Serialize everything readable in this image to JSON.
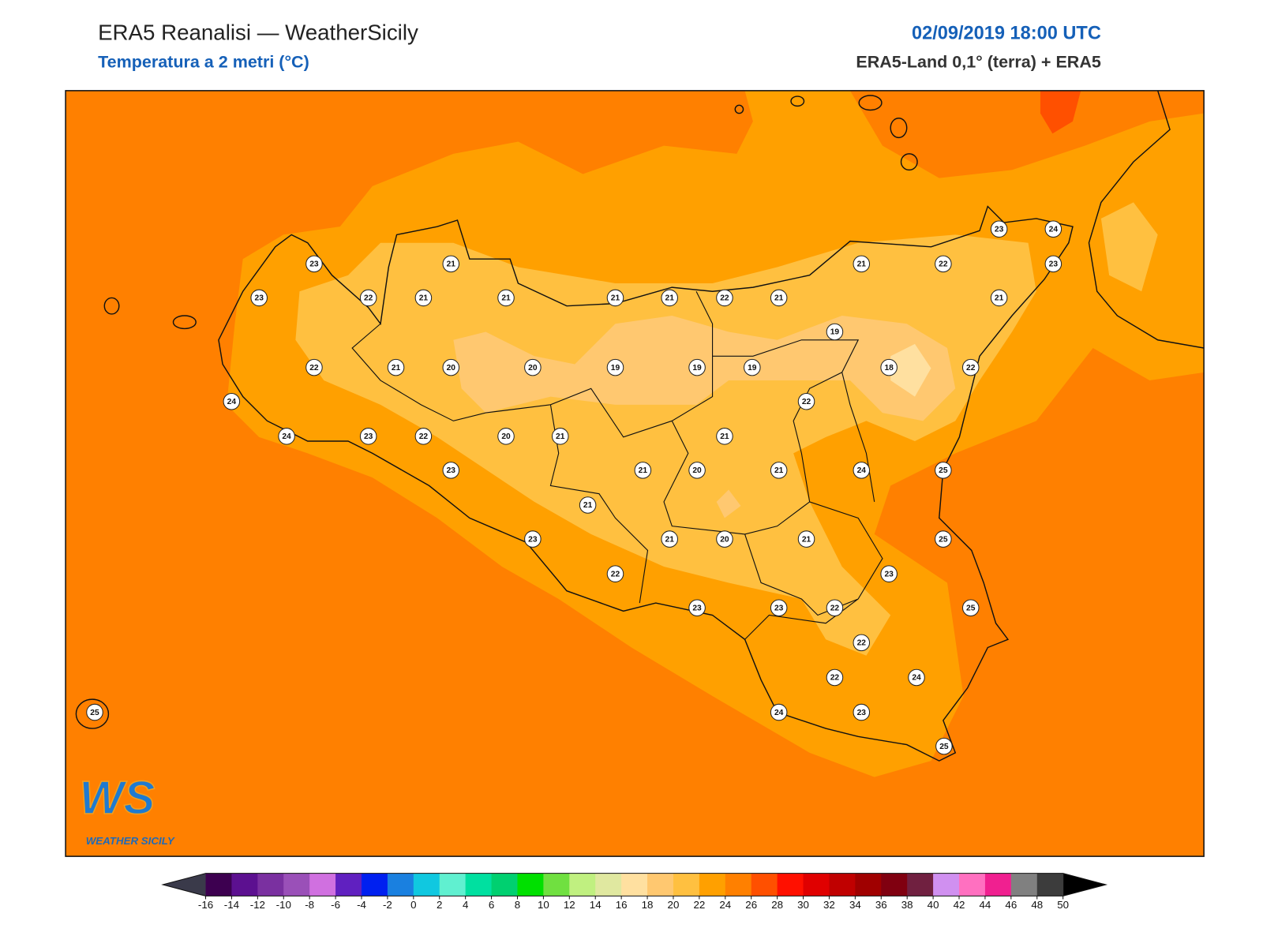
{
  "header": {
    "title": "ERA5 Reanalisi — WeatherSicily",
    "subtitle": "Temperatura a 2 metri (°C)",
    "datetime": "02/09/2019 18:00 UTC",
    "source": "ERA5-Land 0,1° (terra) + ERA5"
  },
  "stations": [
    23,
    21,
    23,
    22,
    21,
    21,
    21,
    21,
    22,
    21,
    21,
    22,
    23,
    24,
    23,
    21,
    19,
    22,
    21,
    20,
    20,
    19,
    19,
    19,
    18,
    22,
    24,
    22,
    24,
    23,
    22,
    20,
    21,
    21,
    23,
    21,
    20,
    21,
    24,
    25,
    21,
    23,
    21,
    20,
    21,
    25,
    22,
    23,
    23,
    23,
    22,
    25,
    22,
    22,
    24,
    24,
    23,
    25,
    25
  ],
  "logo": {
    "mark": "WS",
    "name": "WEATHER SICILY"
  },
  "colorbar": {
    "ticks": [
      -16,
      -14,
      -12,
      -10,
      -8,
      -6,
      -4,
      -2,
      0,
      2,
      4,
      6,
      8,
      10,
      12,
      14,
      16,
      18,
      20,
      22,
      24,
      26,
      28,
      30,
      32,
      34,
      36,
      38,
      40,
      42,
      44,
      46,
      48,
      50
    ],
    "colors": [
      "#3d0050",
      "#5c1090",
      "#7a30a0",
      "#9a50b8",
      "#d070e0",
      "#6020c0",
      "#0020f0",
      "#1a80e0",
      "#10c8e0",
      "#60f0d0",
      "#00e0a0",
      "#00d070",
      "#00e000",
      "#70e040",
      "#c0f080",
      "#e0e8a0",
      "#ffe0a0",
      "#ffc870",
      "#ffc040",
      "#ffa000",
      "#ff8000",
      "#ff5000",
      "#ff1000",
      "#e00000",
      "#c00000",
      "#a00000",
      "#800010",
      "#702040",
      "#d090f0",
      "#ff70c0",
      "#f02090",
      "#808080",
      "#3c3c3c"
    ],
    "under_color": "#3a3a4a",
    "over_color": "#000000"
  }
}
